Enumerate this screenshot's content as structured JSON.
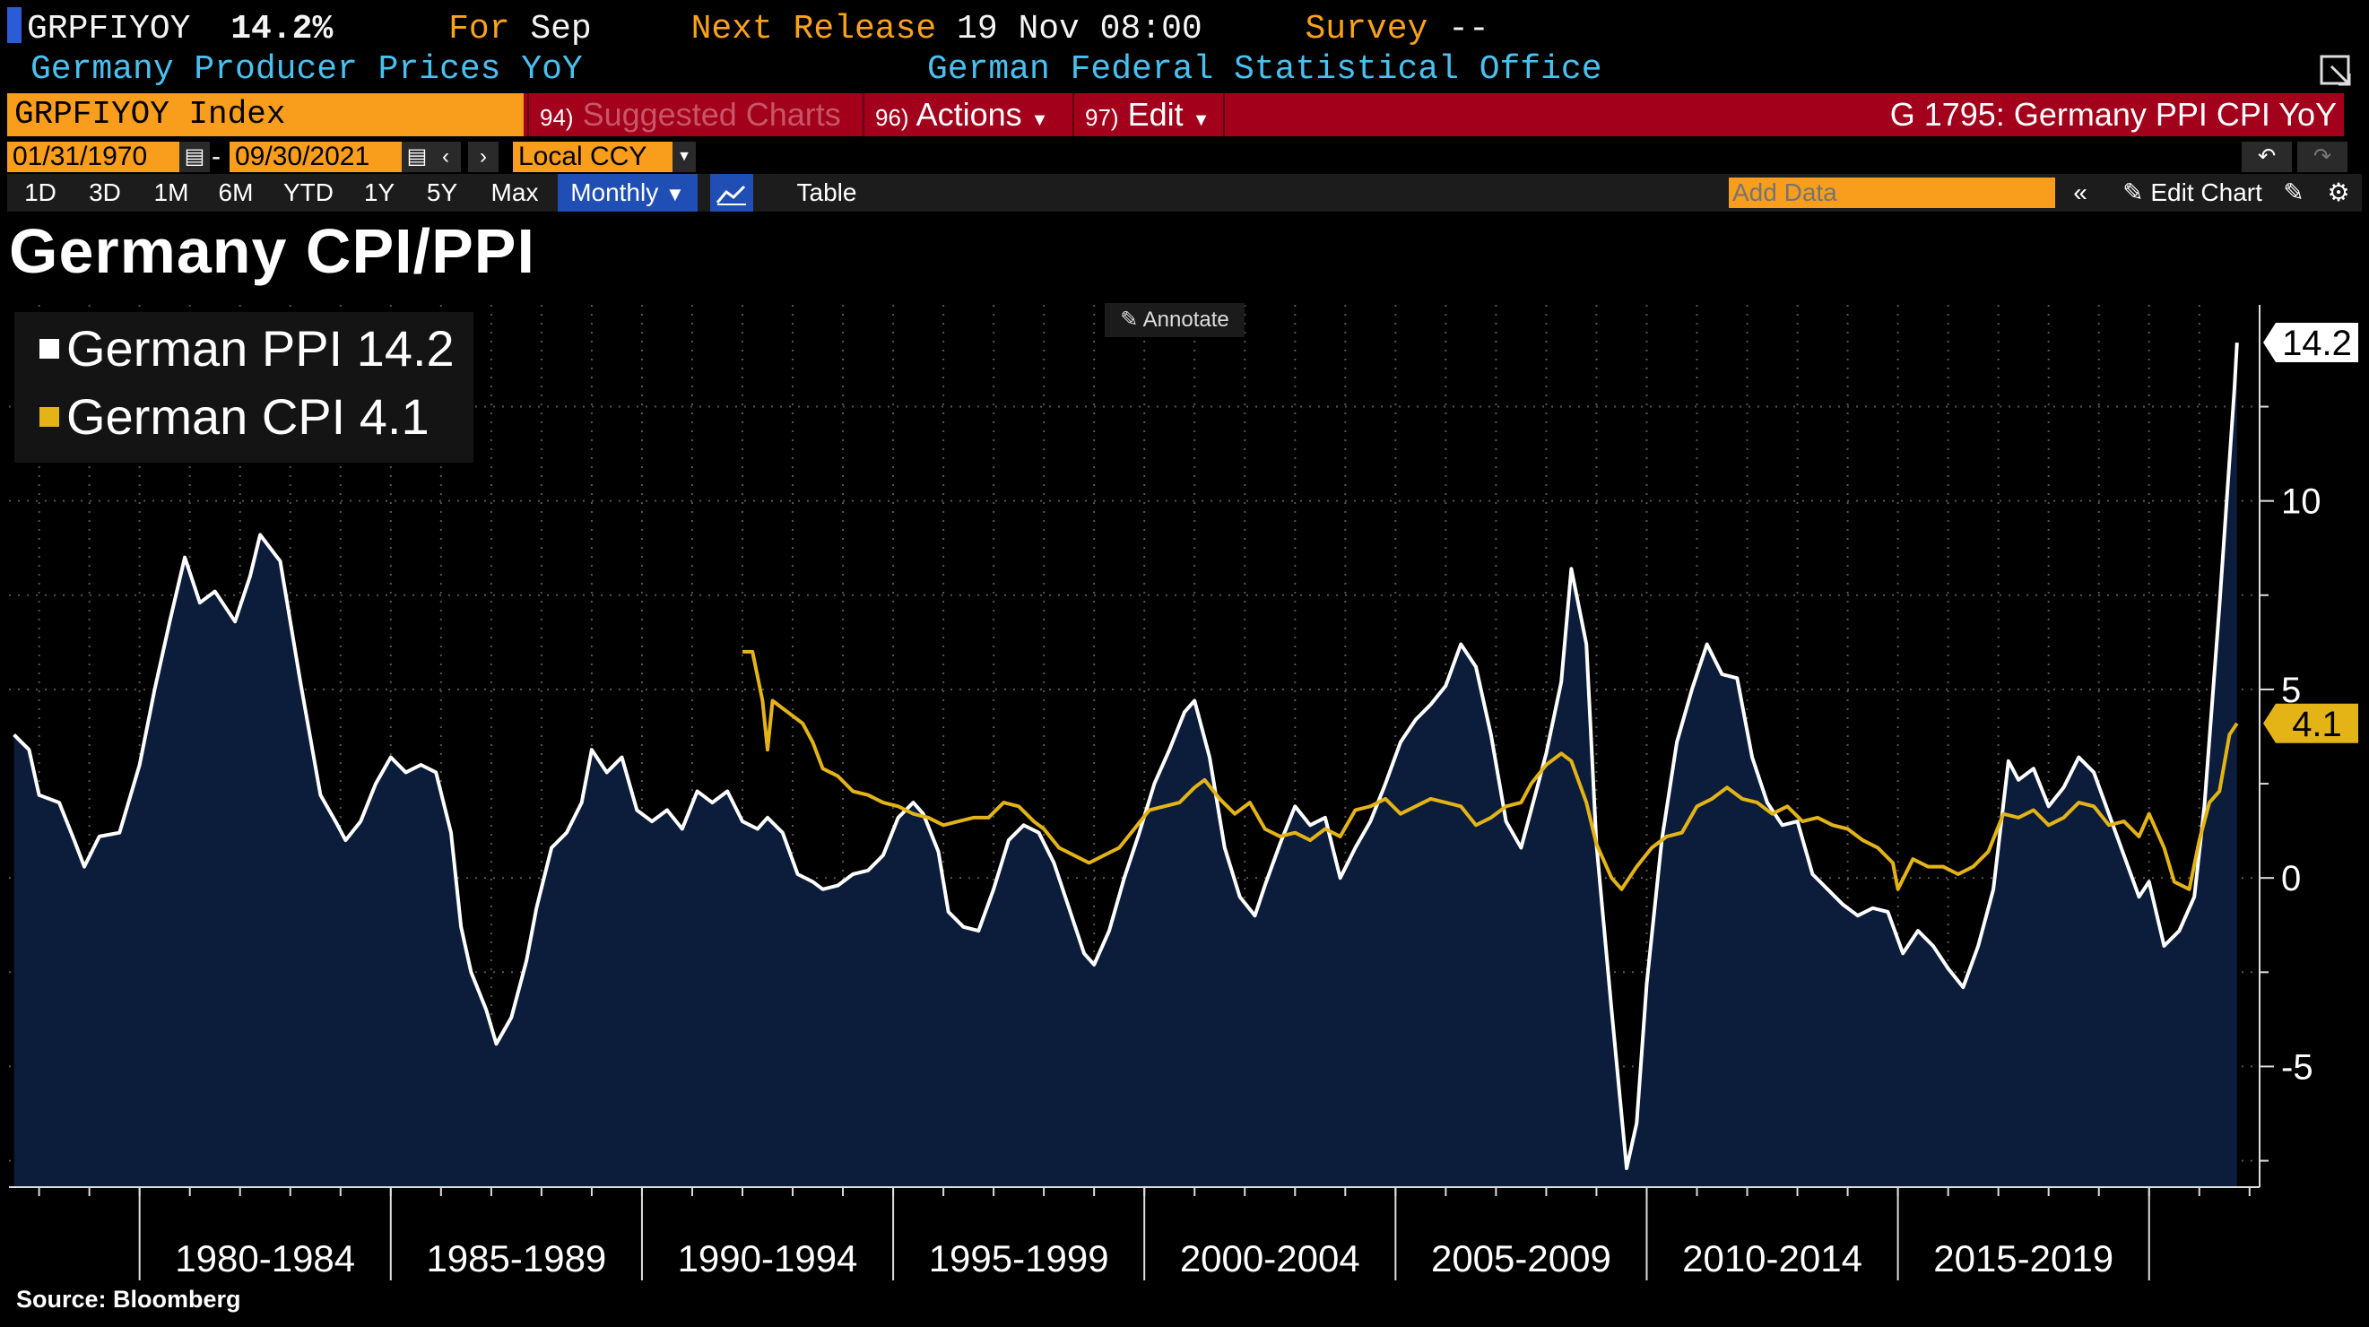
{
  "header": {
    "ticker": "GRPFIYOY",
    "value": "14.2%",
    "for_label": "For",
    "for_value": "Sep",
    "next_release_label": "Next Release",
    "next_release_value": "19 Nov 08:00",
    "survey_label": "Survey",
    "survey_value": "--",
    "description": "Germany Producer Prices YoY",
    "source_org": "German Federal Statistical Office"
  },
  "menubar": {
    "index": "GRPFIYOY Index",
    "suggested_num": "94)",
    "suggested": "Suggested Charts",
    "actions_num": "96)",
    "actions": "Actions",
    "edit_num": "97)",
    "edit": "Edit",
    "chart_id": "G 1795: Germany PPI CPI YoY"
  },
  "daterow": {
    "start": "01/31/1970",
    "dash": "-",
    "end": "09/30/2021",
    "currency": "Local CCY"
  },
  "toolbar": {
    "periods": [
      "1D",
      "3D",
      "1M",
      "6M",
      "YTD",
      "1Y",
      "5Y",
      "Max"
    ],
    "frequency": "Monthly",
    "table": "Table",
    "add_data_placeholder": "Add Data",
    "edit_chart": "Edit Chart"
  },
  "annotate": "Annotate",
  "source": "Source: Bloomberg",
  "colors": {
    "ppi": "#ffffff",
    "cpi": "#e4b417",
    "area": "#0b1d3a",
    "amber": "#f99d1c",
    "red_bar": "#a2001b"
  },
  "chart_data": {
    "type": "line",
    "title": "Germany CPI/PPI",
    "xlabel": "",
    "ylabel": "",
    "x_range": [
      1977.4,
      2022.2
    ],
    "ylim": [
      -8.2,
      15.2
    ],
    "y_ticks": [
      -5,
      0,
      5,
      10
    ],
    "y_tick_labels": [
      "-5",
      "0",
      "5",
      "10"
    ],
    "x_ticks": [
      "1980-1984",
      "1985-1989",
      "1990-1994",
      "1995-1999",
      "2000-2004",
      "2005-2009",
      "2010-2014",
      "2015-2019"
    ],
    "x_tick_ranges": [
      [
        1980,
        1985
      ],
      [
        1985,
        1990
      ],
      [
        1990,
        1995
      ],
      [
        1995,
        2000
      ],
      [
        2000,
        2005
      ],
      [
        2005,
        2010
      ],
      [
        2010,
        2015
      ],
      [
        2015,
        2020
      ]
    ],
    "grid": true,
    "legend_position": "top-left",
    "series": [
      {
        "name": "German PPI",
        "last_value": "14.2",
        "style": "white line with navy area fill",
        "points": [
          [
            1977.5,
            3.8
          ],
          [
            1977.8,
            3.4
          ],
          [
            1978.0,
            2.2
          ],
          [
            1978.4,
            2.0
          ],
          [
            1978.7,
            1.0
          ],
          [
            1978.9,
            0.3
          ],
          [
            1979.2,
            1.1
          ],
          [
            1979.6,
            1.2
          ],
          [
            1980.0,
            3.0
          ],
          [
            1980.3,
            5.0
          ],
          [
            1980.6,
            6.8
          ],
          [
            1980.9,
            8.5
          ],
          [
            1981.2,
            7.3
          ],
          [
            1981.5,
            7.6
          ],
          [
            1981.9,
            6.8
          ],
          [
            1982.2,
            8.0
          ],
          [
            1982.4,
            9.1
          ],
          [
            1982.8,
            8.4
          ],
          [
            1983.2,
            5.2
          ],
          [
            1983.6,
            2.2
          ],
          [
            1983.9,
            1.5
          ],
          [
            1984.1,
            1.0
          ],
          [
            1984.4,
            1.5
          ],
          [
            1984.7,
            2.5
          ],
          [
            1985.0,
            3.2
          ],
          [
            1985.3,
            2.8
          ],
          [
            1985.6,
            3.0
          ],
          [
            1985.9,
            2.8
          ],
          [
            1986.2,
            1.2
          ],
          [
            1986.4,
            -1.3
          ],
          [
            1986.6,
            -2.5
          ],
          [
            1986.9,
            -3.5
          ],
          [
            1987.1,
            -4.4
          ],
          [
            1987.4,
            -3.7
          ],
          [
            1987.7,
            -2.2
          ],
          [
            1987.9,
            -0.8
          ],
          [
            1988.2,
            0.8
          ],
          [
            1988.5,
            1.2
          ],
          [
            1988.8,
            2.0
          ],
          [
            1989.0,
            3.4
          ],
          [
            1989.3,
            2.8
          ],
          [
            1989.6,
            3.2
          ],
          [
            1989.9,
            1.8
          ],
          [
            1990.2,
            1.5
          ],
          [
            1990.5,
            1.8
          ],
          [
            1990.8,
            1.3
          ],
          [
            1991.1,
            2.3
          ],
          [
            1991.4,
            2.0
          ],
          [
            1991.7,
            2.3
          ],
          [
            1992.0,
            1.5
          ],
          [
            1992.3,
            1.3
          ],
          [
            1992.5,
            1.6
          ],
          [
            1992.8,
            1.2
          ],
          [
            1993.1,
            0.1
          ],
          [
            1993.4,
            -0.1
          ],
          [
            1993.6,
            -0.3
          ],
          [
            1993.9,
            -0.2
          ],
          [
            1994.2,
            0.1
          ],
          [
            1994.5,
            0.2
          ],
          [
            1994.8,
            0.6
          ],
          [
            1995.1,
            1.6
          ],
          [
            1995.4,
            2.0
          ],
          [
            1995.6,
            1.7
          ],
          [
            1995.9,
            0.7
          ],
          [
            1996.1,
            -0.9
          ],
          [
            1996.4,
            -1.3
          ],
          [
            1996.7,
            -1.4
          ],
          [
            1997.0,
            -0.3
          ],
          [
            1997.3,
            1.0
          ],
          [
            1997.6,
            1.4
          ],
          [
            1997.9,
            1.2
          ],
          [
            1998.2,
            0.4
          ],
          [
            1998.5,
            -0.8
          ],
          [
            1998.8,
            -2.0
          ],
          [
            1999.0,
            -2.3
          ],
          [
            1999.3,
            -1.4
          ],
          [
            1999.6,
            0.0
          ],
          [
            1999.9,
            1.2
          ],
          [
            2000.2,
            2.5
          ],
          [
            2000.5,
            3.4
          ],
          [
            2000.8,
            4.4
          ],
          [
            2001.0,
            4.7
          ],
          [
            2001.3,
            3.2
          ],
          [
            2001.6,
            0.8
          ],
          [
            2001.9,
            -0.5
          ],
          [
            2002.2,
            -1.0
          ],
          [
            2002.4,
            -0.2
          ],
          [
            2002.7,
            0.9
          ],
          [
            2003.0,
            1.9
          ],
          [
            2003.3,
            1.4
          ],
          [
            2003.6,
            1.6
          ],
          [
            2003.9,
            0.0
          ],
          [
            2004.2,
            0.8
          ],
          [
            2004.5,
            1.5
          ],
          [
            2004.8,
            2.5
          ],
          [
            2005.1,
            3.6
          ],
          [
            2005.4,
            4.2
          ],
          [
            2005.7,
            4.6
          ],
          [
            2006.0,
            5.1
          ],
          [
            2006.3,
            6.2
          ],
          [
            2006.6,
            5.6
          ],
          [
            2006.9,
            3.8
          ],
          [
            2007.2,
            1.5
          ],
          [
            2007.5,
            0.8
          ],
          [
            2007.7,
            1.8
          ],
          [
            2008.0,
            3.3
          ],
          [
            2008.3,
            5.2
          ],
          [
            2008.5,
            8.2
          ],
          [
            2008.8,
            6.2
          ],
          [
            2009.0,
            0.9
          ],
          [
            2009.3,
            -3.5
          ],
          [
            2009.6,
            -7.7
          ],
          [
            2009.8,
            -6.5
          ],
          [
            2010.0,
            -2.8
          ],
          [
            2010.3,
            1.0
          ],
          [
            2010.6,
            3.6
          ],
          [
            2010.9,
            5.0
          ],
          [
            2011.2,
            6.2
          ],
          [
            2011.5,
            5.4
          ],
          [
            2011.8,
            5.3
          ],
          [
            2012.1,
            3.2
          ],
          [
            2012.4,
            2.0
          ],
          [
            2012.7,
            1.4
          ],
          [
            2013.0,
            1.5
          ],
          [
            2013.3,
            0.1
          ],
          [
            2013.6,
            -0.3
          ],
          [
            2013.9,
            -0.7
          ],
          [
            2014.2,
            -1.0
          ],
          [
            2014.5,
            -0.8
          ],
          [
            2014.8,
            -0.9
          ],
          [
            2015.1,
            -2.0
          ],
          [
            2015.4,
            -1.4
          ],
          [
            2015.7,
            -1.8
          ],
          [
            2016.0,
            -2.4
          ],
          [
            2016.3,
            -2.9
          ],
          [
            2016.6,
            -1.8
          ],
          [
            2016.9,
            -0.3
          ],
          [
            2017.2,
            3.1
          ],
          [
            2017.4,
            2.6
          ],
          [
            2017.7,
            2.9
          ],
          [
            2018.0,
            1.9
          ],
          [
            2018.3,
            2.4
          ],
          [
            2018.6,
            3.2
          ],
          [
            2018.9,
            2.8
          ],
          [
            2019.2,
            1.7
          ],
          [
            2019.5,
            0.6
          ],
          [
            2019.8,
            -0.5
          ],
          [
            2020.0,
            -0.1
          ],
          [
            2020.3,
            -1.8
          ],
          [
            2020.6,
            -1.4
          ],
          [
            2020.9,
            -0.5
          ],
          [
            2021.1,
            1.9
          ],
          [
            2021.4,
            7.2
          ],
          [
            2021.7,
            13.0
          ],
          [
            2021.75,
            14.2
          ]
        ]
      },
      {
        "name": "German CPI",
        "last_value": "4.1",
        "style": "gold line",
        "points": [
          [
            1992.0,
            6.0
          ],
          [
            1992.2,
            6.0
          ],
          [
            1992.4,
            4.7
          ],
          [
            1992.5,
            3.4
          ],
          [
            1992.6,
            4.7
          ],
          [
            1992.9,
            4.4
          ],
          [
            1993.2,
            4.1
          ],
          [
            1993.4,
            3.6
          ],
          [
            1993.6,
            2.9
          ],
          [
            1993.9,
            2.7
          ],
          [
            1994.2,
            2.3
          ],
          [
            1994.5,
            2.2
          ],
          [
            1994.8,
            2.0
          ],
          [
            1995.1,
            1.9
          ],
          [
            1995.4,
            1.7
          ],
          [
            1995.7,
            1.6
          ],
          [
            1996.0,
            1.4
          ],
          [
            1996.3,
            1.5
          ],
          [
            1996.6,
            1.6
          ],
          [
            1996.9,
            1.6
          ],
          [
            1997.2,
            2.0
          ],
          [
            1997.5,
            1.9
          ],
          [
            1997.8,
            1.5
          ],
          [
            1998.0,
            1.3
          ],
          [
            1998.3,
            0.8
          ],
          [
            1998.6,
            0.6
          ],
          [
            1998.9,
            0.4
          ],
          [
            1999.2,
            0.6
          ],
          [
            1999.5,
            0.8
          ],
          [
            1999.8,
            1.3
          ],
          [
            2000.1,
            1.8
          ],
          [
            2000.4,
            1.9
          ],
          [
            2000.7,
            2.0
          ],
          [
            2001.0,
            2.4
          ],
          [
            2001.2,
            2.6
          ],
          [
            2001.5,
            2.1
          ],
          [
            2001.8,
            1.7
          ],
          [
            2002.1,
            2.0
          ],
          [
            2002.4,
            1.3
          ],
          [
            2002.7,
            1.1
          ],
          [
            2003.0,
            1.2
          ],
          [
            2003.3,
            1.0
          ],
          [
            2003.6,
            1.3
          ],
          [
            2003.9,
            1.1
          ],
          [
            2004.2,
            1.8
          ],
          [
            2004.5,
            1.9
          ],
          [
            2004.8,
            2.1
          ],
          [
            2005.1,
            1.7
          ],
          [
            2005.4,
            1.9
          ],
          [
            2005.7,
            2.1
          ],
          [
            2006.0,
            2.0
          ],
          [
            2006.3,
            1.9
          ],
          [
            2006.6,
            1.4
          ],
          [
            2006.9,
            1.6
          ],
          [
            2007.2,
            1.9
          ],
          [
            2007.5,
            2.0
          ],
          [
            2007.7,
            2.5
          ],
          [
            2008.0,
            3.0
          ],
          [
            2008.3,
            3.3
          ],
          [
            2008.5,
            3.1
          ],
          [
            2008.8,
            2.0
          ],
          [
            2009.0,
            0.9
          ],
          [
            2009.3,
            0.0
          ],
          [
            2009.5,
            -0.3
          ],
          [
            2009.8,
            0.3
          ],
          [
            2010.1,
            0.8
          ],
          [
            2010.4,
            1.1
          ],
          [
            2010.7,
            1.2
          ],
          [
            2011.0,
            1.9
          ],
          [
            2011.3,
            2.1
          ],
          [
            2011.6,
            2.4
          ],
          [
            2011.9,
            2.1
          ],
          [
            2012.2,
            2.0
          ],
          [
            2012.5,
            1.7
          ],
          [
            2012.8,
            1.9
          ],
          [
            2013.1,
            1.5
          ],
          [
            2013.4,
            1.6
          ],
          [
            2013.7,
            1.4
          ],
          [
            2014.0,
            1.3
          ],
          [
            2014.3,
            1.0
          ],
          [
            2014.6,
            0.8
          ],
          [
            2014.9,
            0.4
          ],
          [
            2015.0,
            -0.3
          ],
          [
            2015.3,
            0.5
          ],
          [
            2015.6,
            0.3
          ],
          [
            2015.9,
            0.3
          ],
          [
            2016.2,
            0.1
          ],
          [
            2016.5,
            0.3
          ],
          [
            2016.8,
            0.7
          ],
          [
            2017.1,
            1.7
          ],
          [
            2017.4,
            1.6
          ],
          [
            2017.7,
            1.8
          ],
          [
            2018.0,
            1.4
          ],
          [
            2018.3,
            1.6
          ],
          [
            2018.6,
            2.0
          ],
          [
            2018.9,
            1.9
          ],
          [
            2019.2,
            1.4
          ],
          [
            2019.5,
            1.5
          ],
          [
            2019.8,
            1.1
          ],
          [
            2020.0,
            1.7
          ],
          [
            2020.3,
            0.8
          ],
          [
            2020.5,
            -0.1
          ],
          [
            2020.8,
            -0.3
          ],
          [
            2021.0,
            1.0
          ],
          [
            2021.2,
            2.0
          ],
          [
            2021.4,
            2.3
          ],
          [
            2021.6,
            3.8
          ],
          [
            2021.75,
            4.1
          ]
        ]
      }
    ]
  }
}
